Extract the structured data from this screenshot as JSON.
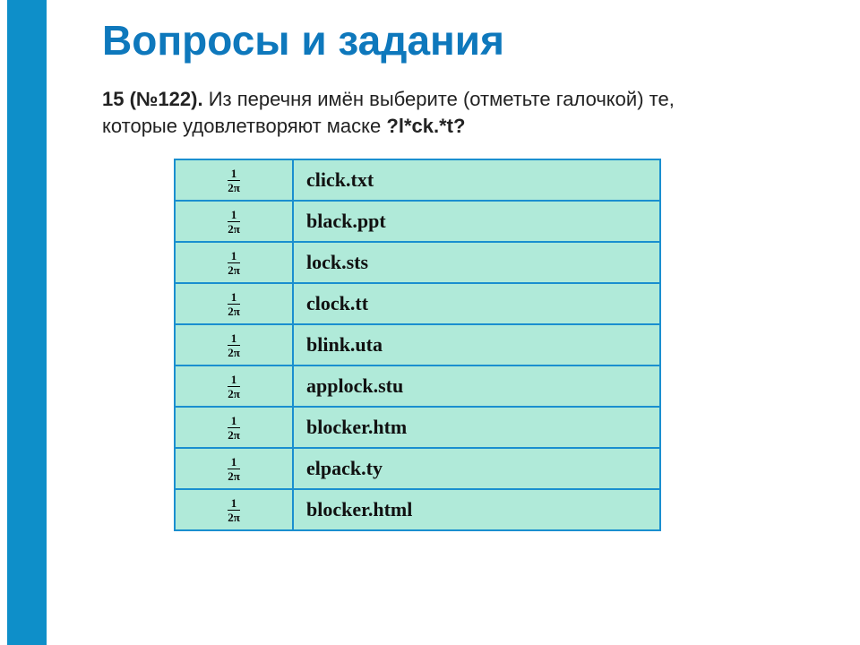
{
  "title": "Вопросы и задания",
  "instruction": {
    "lead": "15 (№122). ",
    "body": "Из перечня имён выберите (отметьте галочкой) те, которые удовлетворяют маске ",
    "mask": "?l*ck.*t?"
  },
  "table": {
    "marker": {
      "numerator": "1",
      "denominator": "2π"
    },
    "rows": [
      {
        "filename": "click.txt"
      },
      {
        "filename": "black.ppt"
      },
      {
        "filename": "lock.sts"
      },
      {
        "filename": "clock.tt"
      },
      {
        "filename": "blink.uta"
      },
      {
        "filename": "applock.stu"
      },
      {
        "filename": "blocker.htm"
      },
      {
        "filename": "elpack.ty"
      },
      {
        "filename": "blocker.html"
      }
    ]
  },
  "colors": {
    "leftbar": "#0e8fc9",
    "title": "#0e78bc",
    "cell_bg": "#b0ead9",
    "cell_border": "#1a8fcf",
    "text": "#111111",
    "page_bg": "#ffffff"
  }
}
